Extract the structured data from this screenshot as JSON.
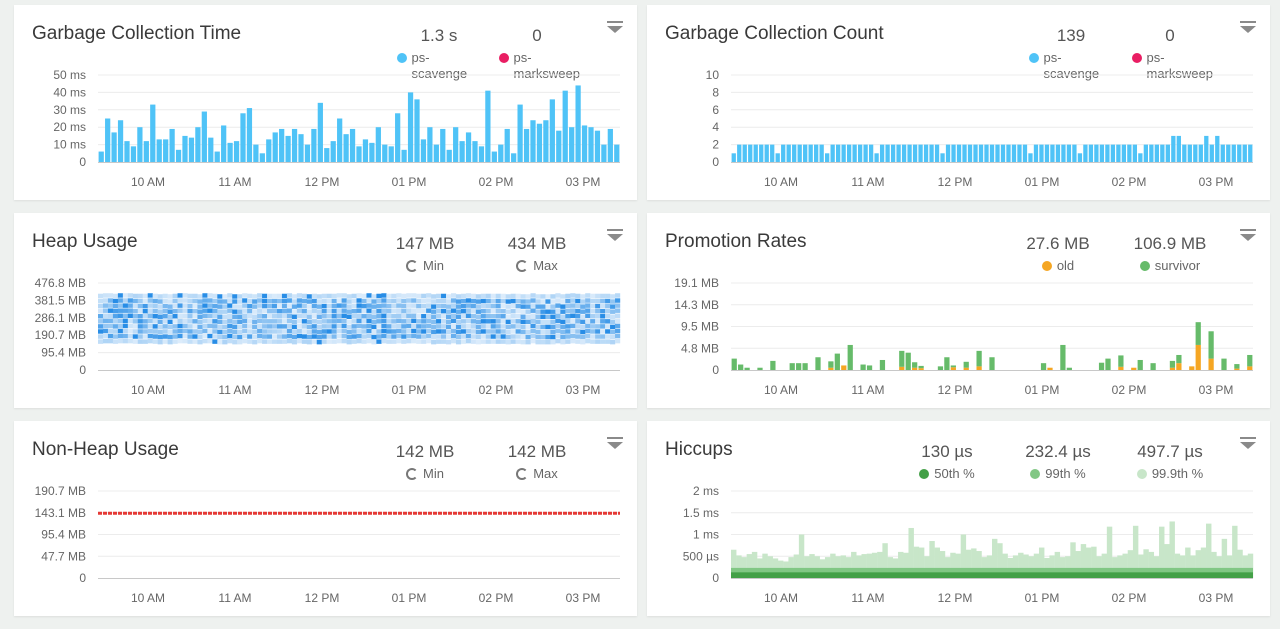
{
  "colors": {
    "blue": "#4fc3f7",
    "pink": "#e91e63",
    "orange": "#f5a623",
    "green": "#66bb6a",
    "green_dark": "#43a047",
    "green_mid": "#81c784",
    "green_light": "#c8e6c9",
    "red": "#e53935",
    "heat_light": "#dcecfb",
    "heat_dark": "#1e88e5"
  },
  "x_ticks": [
    "10 AM",
    "11 AM",
    "12 PM",
    "01 PM",
    "02 PM",
    "03 PM"
  ],
  "panels": {
    "gc_time": {
      "title": "Garbage Collection Time",
      "stats": [
        {
          "value": "1.3 s",
          "label": "ps-scavenge",
          "color": "#4fc3f7"
        },
        {
          "value": "0",
          "label": "ps-marksweep",
          "color": "#e91e63"
        }
      ]
    },
    "gc_count": {
      "title": "Garbage Collection Count",
      "stats": [
        {
          "value": "139",
          "label": "ps-scavenge",
          "color": "#4fc3f7"
        },
        {
          "value": "0",
          "label": "ps-marksweep",
          "color": "#e91e63"
        }
      ]
    },
    "heap": {
      "title": "Heap Usage",
      "stats": [
        {
          "value": "147 MB",
          "label": "Min"
        },
        {
          "value": "434 MB",
          "label": "Max"
        }
      ]
    },
    "promotion": {
      "title": "Promotion Rates",
      "stats": [
        {
          "value": "27.6 MB",
          "label": "old",
          "color": "#f5a623"
        },
        {
          "value": "106.9 MB",
          "label": "survivor",
          "color": "#66bb6a"
        }
      ]
    },
    "nonheap": {
      "title": "Non-Heap Usage",
      "stats": [
        {
          "value": "142 MB",
          "label": "Min"
        },
        {
          "value": "142 MB",
          "label": "Max"
        }
      ]
    },
    "hiccups": {
      "title": "Hiccups",
      "stats": [
        {
          "value": "130 µs",
          "label": "50th %",
          "color": "#43a047"
        },
        {
          "value": "232.4 µs",
          "label": "99th %",
          "color": "#81c784"
        },
        {
          "value": "497.7 µs",
          "label": "99.9th %",
          "color": "#c8e6c9"
        }
      ]
    }
  },
  "chart_data": [
    {
      "id": "gc_time",
      "type": "bar",
      "title": "Garbage Collection Time",
      "y_ticks": [
        "0",
        "10 ms",
        "20 ms",
        "30 ms",
        "40 ms",
        "50 ms"
      ],
      "ylim": [
        0,
        50
      ],
      "x_ticks": [
        "10 AM",
        "11 AM",
        "12 PM",
        "01 PM",
        "02 PM",
        "03 PM"
      ],
      "series": [
        {
          "name": "ps-scavenge",
          "values": [
            6,
            25,
            17,
            24,
            12,
            9,
            20,
            12,
            33,
            13,
            13,
            19,
            7,
            15,
            14,
            20,
            29,
            14,
            6,
            21,
            11,
            12,
            28,
            31,
            10,
            5,
            13,
            17,
            19,
            15,
            19,
            16,
            10,
            19,
            34,
            8,
            12,
            25,
            16,
            19,
            9,
            13,
            11,
            20,
            10,
            9,
            28,
            7,
            40,
            36,
            13,
            20,
            10,
            19,
            7,
            20,
            12,
            17,
            12,
            9,
            41,
            6,
            10,
            19,
            5,
            33,
            19,
            24,
            22,
            24,
            36,
            18,
            41,
            20,
            44,
            21,
            20,
            18,
            10,
            19,
            10
          ]
        }
      ]
    },
    {
      "id": "gc_count",
      "type": "bar",
      "title": "Garbage Collection Count",
      "y_ticks": [
        "0",
        "2",
        "4",
        "6",
        "8",
        "10"
      ],
      "ylim": [
        0,
        10
      ],
      "x_ticks": [
        "10 AM",
        "11 AM",
        "12 PM",
        "01 PM",
        "02 PM",
        "03 PM"
      ],
      "series": [
        {
          "name": "ps-scavenge",
          "values": [
            1,
            2,
            2,
            2,
            2,
            2,
            2,
            2,
            1,
            2,
            2,
            2,
            2,
            2,
            2,
            2,
            2,
            1,
            2,
            2,
            2,
            2,
            2,
            2,
            2,
            2,
            1,
            2,
            2,
            2,
            2,
            2,
            2,
            2,
            2,
            2,
            2,
            2,
            1,
            2,
            2,
            2,
            2,
            2,
            2,
            2,
            2,
            2,
            2,
            2,
            2,
            2,
            2,
            2,
            1,
            2,
            2,
            2,
            2,
            2,
            2,
            2,
            2,
            1,
            2,
            2,
            2,
            2,
            2,
            2,
            2,
            2,
            2,
            2,
            1,
            2,
            2,
            2,
            2,
            2,
            3,
            3,
            2,
            2,
            2,
            2,
            3,
            2,
            3,
            2,
            2,
            2,
            2,
            2,
            2
          ]
        }
      ]
    },
    {
      "id": "heap",
      "type": "heatmap",
      "title": "Heap Usage",
      "y_ticks": [
        "0",
        "95.4 MB",
        "190.7 MB",
        "286.1 MB",
        "381.5 MB",
        "476.8 MB"
      ],
      "ylim": [
        0,
        476.8
      ],
      "x_ticks": [
        "10 AM",
        "11 AM",
        "12 PM",
        "01 PM",
        "02 PM",
        "03 PM"
      ],
      "min": 147,
      "max": 434
    },
    {
      "id": "promotion",
      "type": "bar",
      "title": "Promotion Rates",
      "y_ticks": [
        "0",
        "4.8 MB",
        "9.5 MB",
        "14.3 MB",
        "19.1 MB"
      ],
      "ylim": [
        0,
        19.1
      ],
      "x_ticks": [
        "10 AM",
        "11 AM",
        "12 PM",
        "01 PM",
        "02 PM",
        "03 PM"
      ],
      "series": [
        {
          "name": "old",
          "values": [
            0,
            0,
            0,
            0,
            0,
            0,
            0,
            0,
            0,
            0,
            0,
            0,
            0,
            0,
            0,
            0.5,
            0,
            1,
            0,
            0,
            0,
            0,
            0,
            0,
            0,
            0,
            0.7,
            0,
            0.5,
            0.4,
            0,
            0,
            0,
            0,
            0.6,
            0,
            0.5,
            0,
            0.8,
            0,
            0,
            0,
            0,
            0,
            0,
            0,
            0,
            0,
            0,
            0.5,
            0,
            0,
            0,
            0,
            0,
            0,
            0,
            0,
            0,
            0,
            0.7,
            0,
            0.5,
            0,
            0,
            0,
            0,
            0,
            0.5,
            1.5,
            0,
            0.8,
            5.5,
            0,
            2.5,
            0,
            0,
            0,
            0.3,
            0,
            0.8
          ]
        },
        {
          "name": "survivor",
          "values": [
            2.5,
            1.2,
            0.5,
            0,
            0.5,
            0,
            2,
            0,
            0,
            1.5,
            1.5,
            1.5,
            0,
            2.8,
            0,
            1.4,
            3.6,
            0,
            5.5,
            0,
            1.2,
            1,
            0,
            2.2,
            0,
            0,
            3.5,
            3.8,
            1.2,
            0.5,
            0,
            0,
            0.8,
            2.8,
            0.4,
            0,
            1.3,
            0,
            3.4,
            0,
            2.8,
            0,
            0,
            0,
            0,
            0,
            0,
            0,
            1.5,
            0,
            0,
            5.5,
            0.5,
            0,
            0,
            0,
            0,
            1.6,
            2.5,
            0,
            2.5,
            0,
            0,
            2.2,
            0,
            1.5,
            0,
            0,
            1.5,
            1.8,
            0,
            0,
            5,
            0,
            6,
            0,
            2.5,
            0,
            1,
            0,
            2.5
          ]
        }
      ]
    },
    {
      "id": "nonheap",
      "type": "line",
      "title": "Non-Heap Usage",
      "y_ticks": [
        "0",
        "47.7 MB",
        "95.4 MB",
        "143.1 MB",
        "190.7 MB"
      ],
      "ylim": [
        0,
        190.7
      ],
      "x_ticks": [
        "10 AM",
        "11 AM",
        "12 PM",
        "01 PM",
        "02 PM",
        "03 PM"
      ],
      "series": [
        {
          "name": "Non-Heap",
          "value": 142
        }
      ]
    },
    {
      "id": "hiccups",
      "type": "area",
      "title": "Hiccups",
      "y_ticks": [
        "0",
        "500 µs",
        "1 ms",
        "1.5 ms",
        "2 ms"
      ],
      "ylim": [
        0,
        2000
      ],
      "x_ticks": [
        "10 AM",
        "11 AM",
        "12 PM",
        "01 PM",
        "02 PM",
        "03 PM"
      ],
      "series": [
        {
          "name": "50th %",
          "value": 130
        },
        {
          "name": "99th %",
          "value": 232.4
        },
        {
          "name": "99.9th %",
          "values": [
            650,
            520,
            480,
            550,
            600,
            450,
            560,
            500,
            450,
            400,
            380,
            480,
            540,
            1000,
            500,
            550,
            500,
            430,
            480,
            560,
            500,
            520,
            480,
            600,
            520,
            550,
            560,
            580,
            600,
            800,
            480,
            450,
            600,
            580,
            1150,
            720,
            700,
            500,
            850,
            700,
            620,
            480,
            580,
            560,
            1000,
            650,
            680,
            620,
            480,
            520,
            900,
            800,
            560,
            460,
            520,
            580,
            540,
            500,
            560,
            700,
            460,
            520,
            600,
            480,
            500,
            820,
            620,
            780,
            700,
            720,
            500,
            560,
            1180,
            480,
            520,
            560,
            640,
            1200,
            540,
            660,
            600,
            500,
            1180,
            780,
            1300,
            560,
            520,
            700,
            520,
            640,
            700,
            1250,
            600,
            500,
            900,
            520,
            1200,
            650,
            520,
            560
          ]
        }
      ]
    }
  ]
}
